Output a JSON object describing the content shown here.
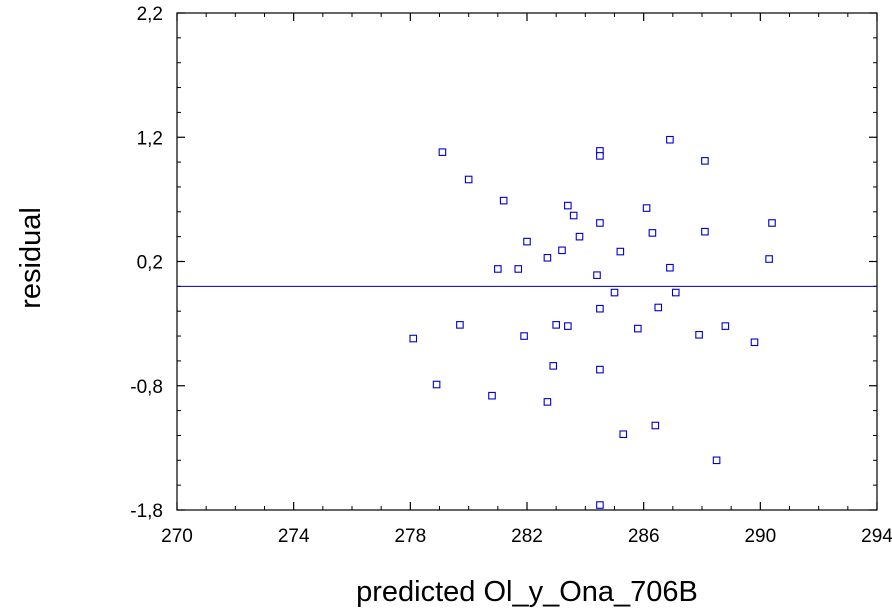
{
  "chart_data": {
    "type": "scatter",
    "xlabel": "predicted Ol_y_Ona_706B",
    "ylabel": "residual",
    "xlim": [
      270,
      294
    ],
    "ylim": [
      -1.8,
      2.2
    ],
    "x_ticks": [
      "270",
      "274",
      "278",
      "282",
      "286",
      "290",
      "294"
    ],
    "y_ticks": [
      "-1,8",
      "-0,8",
      "0,2",
      "1,2",
      "2,2"
    ],
    "x_tick_values": [
      270,
      274,
      278,
      282,
      286,
      290,
      294
    ],
    "y_tick_values": [
      -1.8,
      -0.8,
      0.2,
      1.2,
      2.2
    ],
    "reference_line": {
      "y": 0
    },
    "grid": false,
    "colors": {
      "marker": "#0000cc",
      "line": "#0000aa",
      "axis": "#000000"
    },
    "points": [
      {
        "x": 278.1,
        "y": -0.42
      },
      {
        "x": 278.9,
        "y": -0.79
      },
      {
        "x": 279.1,
        "y": 1.08
      },
      {
        "x": 279.7,
        "y": -0.31
      },
      {
        "x": 280.0,
        "y": 0.86
      },
      {
        "x": 280.8,
        "y": -0.88
      },
      {
        "x": 281.0,
        "y": 0.14
      },
      {
        "x": 281.2,
        "y": 0.69
      },
      {
        "x": 281.7,
        "y": 0.14
      },
      {
        "x": 281.9,
        "y": -0.4
      },
      {
        "x": 282.0,
        "y": 0.36
      },
      {
        "x": 282.7,
        "y": 0.23
      },
      {
        "x": 282.7,
        "y": -0.93
      },
      {
        "x": 282.9,
        "y": -0.64
      },
      {
        "x": 283.0,
        "y": -0.31
      },
      {
        "x": 283.2,
        "y": 0.29
      },
      {
        "x": 283.4,
        "y": 0.65
      },
      {
        "x": 283.4,
        "y": -0.32
      },
      {
        "x": 283.6,
        "y": 0.57
      },
      {
        "x": 283.8,
        "y": 0.4
      },
      {
        "x": 284.4,
        "y": 0.09
      },
      {
        "x": 284.5,
        "y": 1.09
      },
      {
        "x": 284.5,
        "y": 1.05
      },
      {
        "x": 284.5,
        "y": 0.51
      },
      {
        "x": 284.5,
        "y": -0.18
      },
      {
        "x": 284.5,
        "y": -0.67
      },
      {
        "x": 284.5,
        "y": -1.76
      },
      {
        "x": 285.0,
        "y": -0.05
      },
      {
        "x": 285.2,
        "y": 0.28
      },
      {
        "x": 285.3,
        "y": -1.19
      },
      {
        "x": 285.8,
        "y": -0.34
      },
      {
        "x": 286.1,
        "y": 0.63
      },
      {
        "x": 286.3,
        "y": 0.43
      },
      {
        "x": 286.4,
        "y": -1.12
      },
      {
        "x": 286.5,
        "y": -0.17
      },
      {
        "x": 286.9,
        "y": 1.18
      },
      {
        "x": 286.9,
        "y": 0.15
      },
      {
        "x": 287.1,
        "y": -0.05
      },
      {
        "x": 287.9,
        "y": -0.39
      },
      {
        "x": 288.1,
        "y": 1.01
      },
      {
        "x": 288.1,
        "y": 0.44
      },
      {
        "x": 288.5,
        "y": -1.4
      },
      {
        "x": 288.8,
        "y": -0.32
      },
      {
        "x": 289.8,
        "y": -0.45
      },
      {
        "x": 290.3,
        "y": 0.22
      },
      {
        "x": 290.4,
        "y": 0.51
      }
    ]
  }
}
